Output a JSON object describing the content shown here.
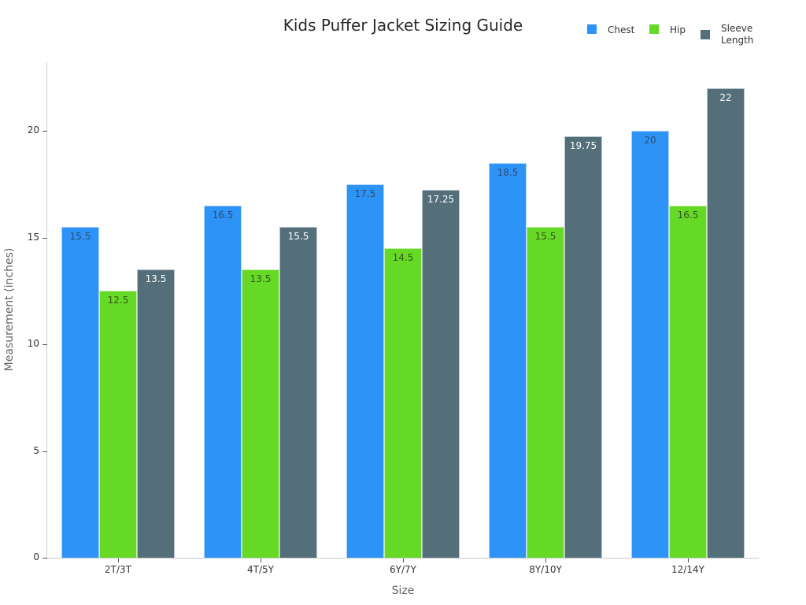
{
  "chart_data": {
    "type": "bar",
    "title": "Kids Puffer Jacket Sizing Guide",
    "xlabel": "Size",
    "ylabel": "Measurement (inches)",
    "categories": [
      "2T/3T",
      "4T/5Y",
      "6Y/7Y",
      "8Y/10Y",
      "12/14Y"
    ],
    "series": [
      {
        "name": "Chest",
        "color": "#2e93f7",
        "label_color": "#2b4d73",
        "values": [
          15.5,
          16.5,
          17.5,
          18.5,
          20
        ]
      },
      {
        "name": "Hip",
        "color": "#66d926",
        "label_color": "#2f5a1a",
        "values": [
          12.5,
          13.5,
          14.5,
          15.5,
          16.5
        ]
      },
      {
        "name": "Sleeve Length",
        "color": "#546e7a",
        "label_color": "#ffffff",
        "values": [
          13.5,
          15.5,
          17.25,
          19.75,
          22
        ]
      }
    ],
    "ylim": [
      0,
      23
    ],
    "yticks": [
      0,
      5,
      10,
      15,
      20
    ],
    "grid": false,
    "legend_position": "top-right"
  },
  "legend": {
    "items": [
      {
        "label_line1": "Chest",
        "label_line2": ""
      },
      {
        "label_line1": "Hip",
        "label_line2": ""
      },
      {
        "label_line1": "Sleeve",
        "label_line2": "Length"
      }
    ]
  }
}
